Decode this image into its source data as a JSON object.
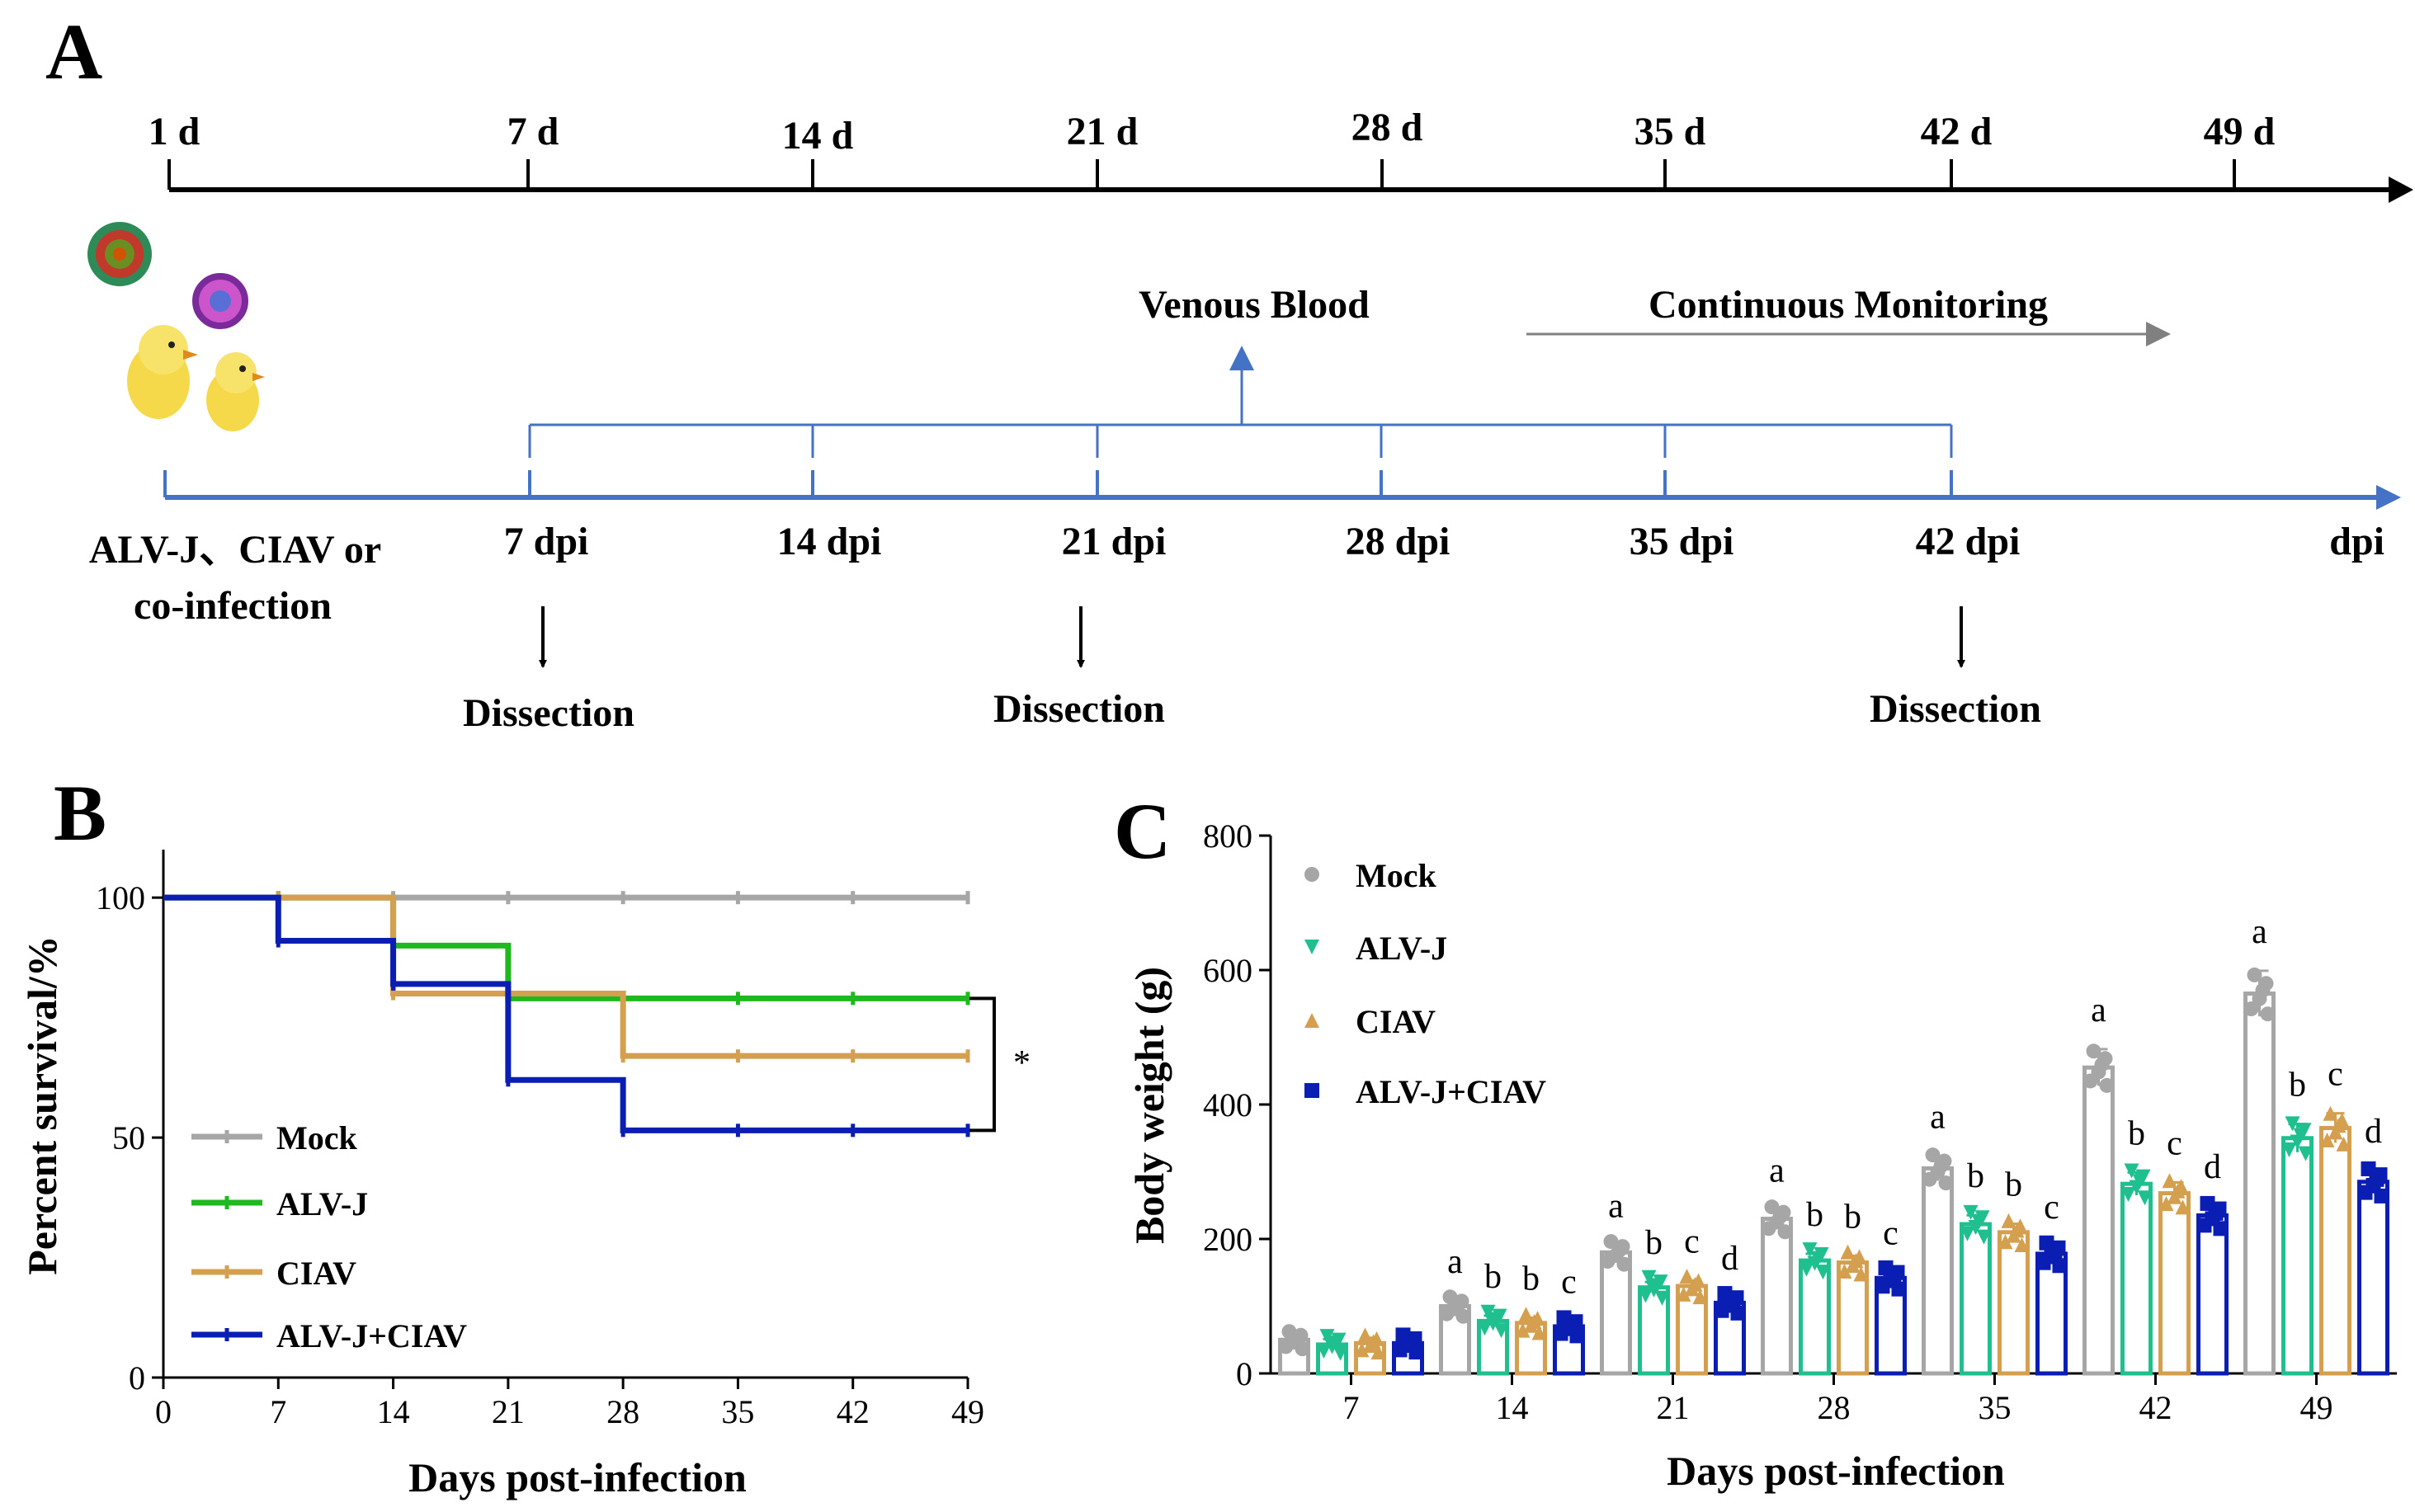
{
  "panel_a": {
    "letter": "A",
    "top_timeline": [
      "1 d",
      "7 d",
      "14 d",
      "21 d",
      "28 d",
      "35 d",
      "42 d",
      "49 d"
    ],
    "dpi_timeline": [
      "7 dpi",
      "14 dpi",
      "21 dpi",
      "28 dpi",
      "35 dpi",
      "42 dpi"
    ],
    "dpi_end_label": "dpi",
    "infection_label_line1": "ALV-J、CIAV or",
    "infection_label_line2": "co-infection",
    "venous_blood": "Venous Blood",
    "continuous_monitoring": "Continuous Monitoring",
    "dissection": "Dissection",
    "colors": {
      "blue": "#4472c4",
      "gray_arrow": "#808080"
    }
  },
  "chart_data": [
    {
      "panel": "B",
      "type": "line",
      "subtype": "kaplan-meier step",
      "xlabel": "Days post-infection",
      "ylabel": "Percent survival/%",
      "x_ticks": [
        "0",
        "7",
        "14",
        "21",
        "28",
        "35",
        "42",
        "49"
      ],
      "y_ticks": [
        "0",
        "50",
        "100"
      ],
      "xlim": [
        0,
        49
      ],
      "ylim": [
        0,
        110
      ],
      "significance": "*",
      "series": [
        {
          "name": "Mock",
          "color": "#a6a6a6",
          "steps": [
            [
              0,
              100
            ],
            [
              49,
              100
            ]
          ]
        },
        {
          "name": "ALV-J",
          "color": "#1eb91e",
          "steps": [
            [
              0,
              100
            ],
            [
              14,
              100
            ],
            [
              14,
              90
            ],
            [
              21,
              90
            ],
            [
              21,
              79
            ],
            [
              49,
              79
            ]
          ]
        },
        {
          "name": "CIAV",
          "color": "#d4a050",
          "steps": [
            [
              0,
              100
            ],
            [
              14,
              100
            ],
            [
              14,
              80
            ],
            [
              28,
              80
            ],
            [
              28,
              67
            ],
            [
              49,
              67
            ]
          ]
        },
        {
          "name": "ALV-J+CIAV",
          "color": "#0a1eb4",
          "steps": [
            [
              0,
              100
            ],
            [
              7,
              100
            ],
            [
              7,
              91
            ],
            [
              14,
              91
            ],
            [
              14,
              82
            ],
            [
              21,
              82
            ],
            [
              21,
              62
            ],
            [
              28,
              62
            ],
            [
              28,
              51.5
            ],
            [
              49,
              51.5
            ]
          ]
        }
      ],
      "censor_ticks": [
        7,
        14,
        21,
        28,
        35,
        42,
        49
      ]
    },
    {
      "panel": "C",
      "type": "bar",
      "xlabel": "Days post-infection",
      "ylabel": "Body weight (g)",
      "categories": [
        "7",
        "14",
        "21",
        "28",
        "35",
        "42",
        "49"
      ],
      "y_ticks": [
        "0",
        "200",
        "400",
        "600",
        "800"
      ],
      "ylim": [
        0,
        800
      ],
      "series": [
        {
          "name": "Mock",
          "color": "#a6a6a6",
          "marker": "circle",
          "values": [
            50,
            100,
            180,
            230,
            305,
            455,
            565
          ],
          "letters": [
            "",
            "a",
            "a",
            "a",
            "a",
            "a",
            "a"
          ]
        },
        {
          "name": "ALV-J",
          "color": "#1fbf8f",
          "marker": "triangle-down",
          "values": [
            43,
            78,
            128,
            168,
            222,
            282,
            350
          ],
          "letters": [
            "",
            "b",
            "b",
            "b",
            "b",
            "b",
            "b"
          ]
        },
        {
          "name": "CIAV",
          "color": "#d4a050",
          "marker": "triangle-up",
          "values": [
            45,
            75,
            130,
            165,
            210,
            268,
            365
          ],
          "letters": [
            "",
            "b",
            "c",
            "b",
            "b",
            "c",
            "c"
          ]
        },
        {
          "name": "ALV-J+CIAV",
          "color": "#0a1eb4",
          "marker": "square",
          "values": [
            45,
            70,
            105,
            142,
            178,
            235,
            285
          ],
          "letters": [
            "",
            "c",
            "d",
            "c",
            "c",
            "d",
            "d"
          ]
        }
      ]
    }
  ],
  "panel_b_letter": "B",
  "panel_c_letter": "C"
}
